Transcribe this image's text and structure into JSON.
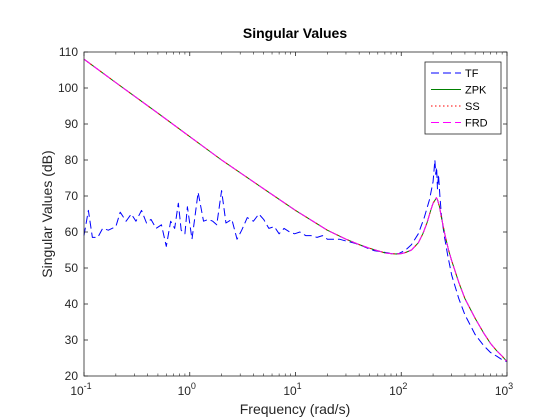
{
  "chart_data": {
    "type": "line",
    "title": "Singular Values",
    "xlabel": "Frequency (rad/s)",
    "ylabel": "Singular Values (dB)",
    "xscale": "log",
    "xlim": [
      0.1,
      1000
    ],
    "ylim": [
      20,
      110
    ],
    "x_ticks": [
      {
        "value": 0.1,
        "base": "10",
        "exp": "-1"
      },
      {
        "value": 1,
        "base": "10",
        "exp": "0"
      },
      {
        "value": 10,
        "base": "10",
        "exp": "1"
      },
      {
        "value": 100,
        "base": "10",
        "exp": "2"
      },
      {
        "value": 1000,
        "base": "10",
        "exp": "3"
      }
    ],
    "y_ticks": [
      "20",
      "30",
      "40",
      "50",
      "60",
      "70",
      "80",
      "90",
      "100",
      "110"
    ],
    "grid": false,
    "legend_position": "top-right",
    "series": [
      {
        "name": "TF",
        "color": "#0000ff",
        "style": "dashed",
        "x": [
          0.1,
          0.11,
          0.12,
          0.135,
          0.15,
          0.17,
          0.2,
          0.22,
          0.25,
          0.28,
          0.31,
          0.35,
          0.39,
          0.43,
          0.48,
          0.54,
          0.6,
          0.66,
          0.72,
          0.78,
          0.83,
          0.9,
          0.95,
          1.05,
          1.2,
          1.35,
          1.5,
          1.65,
          1.8,
          2.0,
          2.2,
          2.5,
          2.8,
          3.1,
          3.5,
          4.0,
          4.5,
          5.0,
          5.6,
          6.3,
          7.0,
          7.8,
          8.8,
          9.8,
          11,
          12.5,
          14,
          16,
          18,
          20,
          23,
          26,
          30,
          35,
          40,
          48,
          56,
          65,
          75,
          85,
          95,
          110,
          125,
          145,
          165,
          185,
          200,
          208,
          212,
          216,
          220,
          225,
          232,
          240,
          255,
          275,
          300,
          350,
          400,
          500,
          600,
          700,
          800,
          900,
          1000
        ],
        "y": [
          59,
          66,
          58.5,
          58.5,
          61,
          60.5,
          61.5,
          65.5,
          63,
          65,
          63,
          66,
          62.5,
          63.5,
          61,
          62,
          56,
          63,
          61,
          68,
          60.5,
          59.5,
          67,
          58,
          71,
          63,
          63.5,
          63,
          62,
          71.5,
          62.5,
          63.5,
          58,
          60.5,
          64,
          63,
          65,
          63.5,
          61,
          61.5,
          59.5,
          61,
          60,
          59.5,
          60,
          59,
          59,
          58.5,
          59,
          58,
          58,
          58,
          57.5,
          57,
          56.5,
          55.5,
          54.8,
          54.5,
          54.2,
          53.8,
          54,
          55,
          56.5,
          59.5,
          64,
          69,
          74,
          80,
          76,
          78,
          72,
          76,
          70,
          64.5,
          59,
          53.5,
          48,
          41.5,
          37,
          31.5,
          28.5,
          26.5,
          25.5,
          24.5,
          24
        ]
      },
      {
        "name": "ZPK",
        "color": "#008000",
        "style": "solid",
        "x": [
          0.1,
          0.2,
          0.5,
          1,
          2,
          5,
          10,
          20,
          30,
          40,
          50,
          60,
          70,
          80,
          90,
          100,
          110,
          125,
          145,
          160,
          175,
          190,
          200,
          210,
          215,
          220,
          230,
          240,
          260,
          280,
          300,
          350,
          400,
          500,
          600,
          700,
          800,
          900,
          1000
        ],
        "y": [
          108,
          101.5,
          93,
          86.5,
          80,
          72,
          66,
          60.5,
          58,
          56.5,
          55.5,
          54.8,
          54.2,
          54,
          53.9,
          54,
          54.3,
          55,
          57,
          59.5,
          62.5,
          66,
          68,
          69,
          69.5,
          69,
          67,
          64,
          59,
          55,
          52,
          46,
          41.5,
          36,
          32,
          29,
          27,
          25.5,
          24
        ]
      },
      {
        "name": "SS",
        "color": "#ff0000",
        "style": "dotted",
        "x": [
          0.1,
          0.2,
          0.5,
          1,
          2,
          5,
          10,
          20,
          30,
          40,
          50,
          60,
          70,
          80,
          90,
          100,
          110,
          125,
          145,
          160,
          175,
          190,
          200,
          210,
          215,
          220,
          230,
          240,
          260,
          280,
          300,
          350,
          400,
          500,
          600,
          700,
          800,
          900,
          1000
        ],
        "y": [
          108,
          101.5,
          93,
          86.5,
          80,
          72,
          66,
          60.5,
          58,
          56.5,
          55.5,
          54.8,
          54.2,
          54,
          53.9,
          54,
          54.3,
          55,
          57,
          59.5,
          62.5,
          66,
          68,
          69,
          69.5,
          69,
          67,
          64,
          59,
          55,
          52,
          46,
          41.5,
          36,
          32,
          29,
          27,
          25.5,
          24
        ]
      },
      {
        "name": "FRD",
        "color": "#ff00ff",
        "style": "dashed",
        "x": [
          0.1,
          0.2,
          0.5,
          1,
          2,
          5,
          10,
          20,
          30,
          40,
          50,
          60,
          70,
          80,
          90,
          100,
          110,
          125,
          145,
          160,
          175,
          190,
          200,
          210,
          215,
          220,
          230,
          240,
          260,
          280,
          300,
          350,
          400,
          500,
          600,
          700,
          800,
          900,
          1000
        ],
        "y": [
          108,
          101.5,
          93,
          86.5,
          80,
          72,
          66,
          60.5,
          58,
          56.5,
          55.5,
          54.8,
          54.2,
          54,
          53.9,
          54,
          54.3,
          55,
          57,
          59.5,
          62.5,
          66,
          68,
          69,
          69.5,
          69,
          67,
          64,
          59,
          55,
          52,
          46,
          41.5,
          36,
          32,
          29,
          27,
          25.5,
          24
        ]
      }
    ]
  }
}
